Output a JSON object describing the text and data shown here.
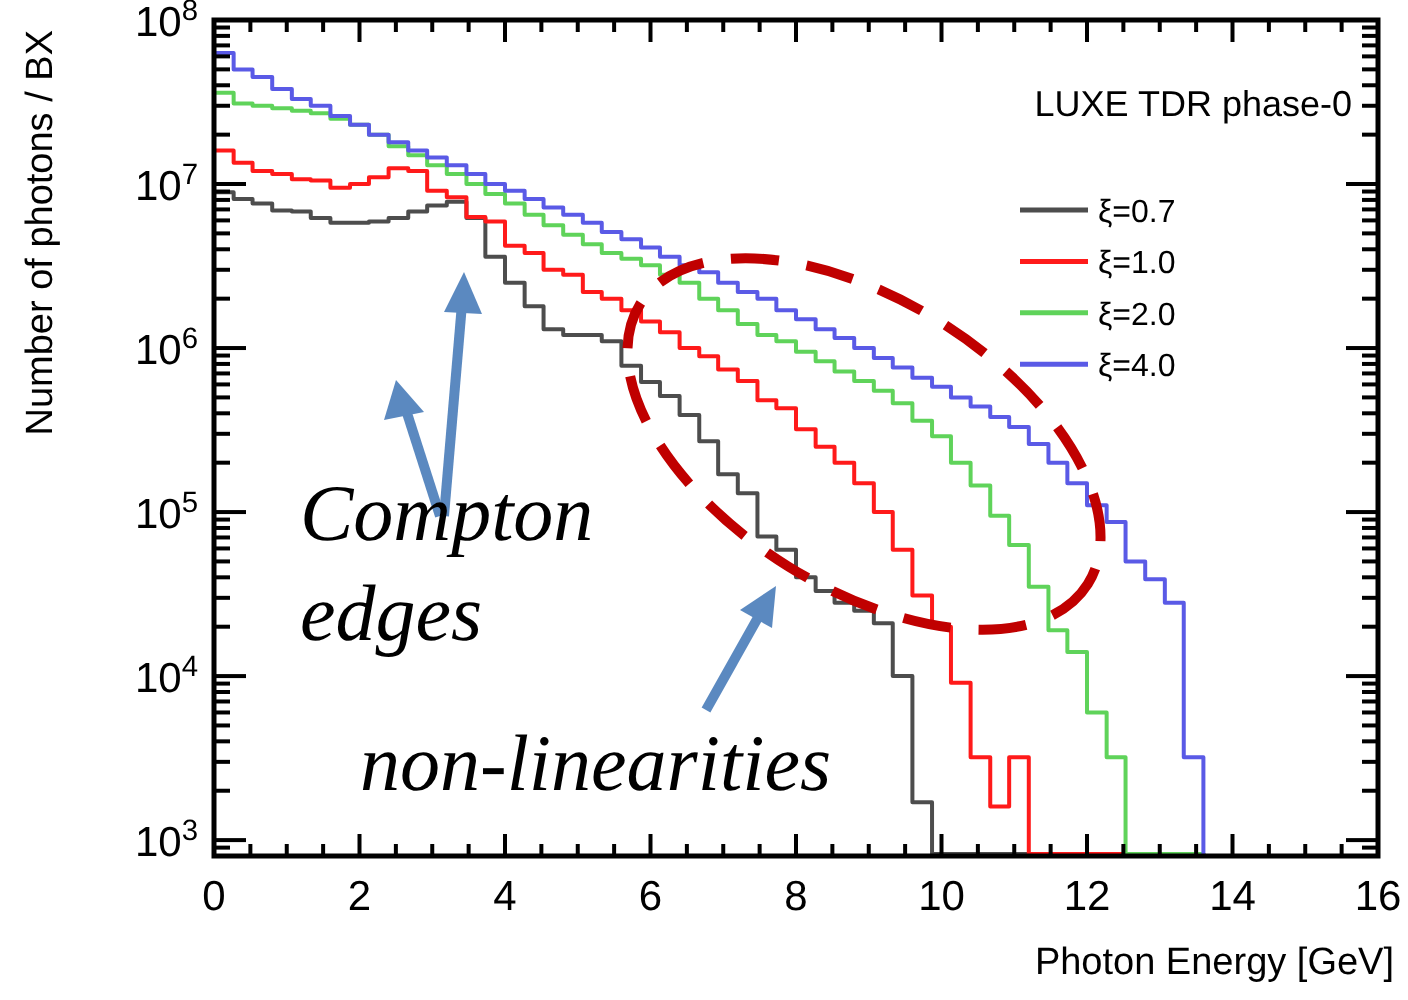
{
  "chart_data": {
    "type": "histogram",
    "xlabel": "Photon Energy [GeV]",
    "ylabel": "Number of photons / BX",
    "legend_title": "LUXE TDR phase-0",
    "legend": "top right",
    "log": true,
    "series": [
      {
        "name": "ξ=0.7",
        "color": "#4d4d4d",
        "values": [
          8900000.0,
          8100000.0,
          7600000.0,
          6900000.0,
          6800000.0,
          6200000.0,
          5800000.0,
          5800000.0,
          5900000.0,
          6200000.0,
          6800000.0,
          7400000.0,
          7800000.0,
          6200000.0,
          3600000.0,
          2500000.0,
          1800000.0,
          1300000.0,
          1200000.0,
          1200000.0,
          1100000.0,
          780000.0,
          620000.0,
          510000.0,
          390000.0,
          270000.0,
          170000.0,
          130000.0,
          71000.0,
          59000.0,
          40000.0,
          33000.0,
          28000.0,
          25000.0,
          21000.0,
          10000.0,
          1700.0,
          null,
          null,
          null,
          null,
          null,
          null,
          null,
          null,
          null,
          null,
          null,
          null,
          null,
          null
        ]
      },
      {
        "name": "ξ=1.0",
        "color": "#ff1a1a",
        "values": [
          16000000.0,
          13500000.0,
          12000000.0,
          11500000.0,
          10700000.0,
          10500000.0,
          9500000.0,
          10000000.0,
          11000000.0,
          12500000.0,
          12000000.0,
          9100000.0,
          8300000.0,
          6300000.0,
          5900000.0,
          4200000.0,
          3800000.0,
          3000000.0,
          2800000.0,
          2200000.0,
          2000000.0,
          1700000.0,
          1450000.0,
          1250000.0,
          1000000.0,
          890000.0,
          740000.0,
          630000.0,
          480000.0,
          430000.0,
          320000.0,
          250000.0,
          200000.0,
          150000.0,
          100000.0,
          59000.0,
          31000.0,
          20000.0,
          9100.0,
          3200.0,
          1600.0,
          3200.0,
          null,
          null,
          null,
          null,
          null,
          null,
          null,
          null,
          null
        ]
      },
      {
        "name": "ξ=2.0",
        "color": "#5fd35a",
        "values": [
          36000000.0,
          31000000.0,
          30000000.0,
          29000000.0,
          28000000.0,
          27000000.0,
          25000000.0,
          23000000.0,
          20000000.0,
          17000000.0,
          15000000.0,
          13000000.0,
          11500000.0,
          10000000.0,
          8700000.0,
          7600000.0,
          6500000.0,
          5600000.0,
          4900000.0,
          4300000.0,
          3800000.0,
          3500000.0,
          3200000.0,
          2800000.0,
          2500000.0,
          2000000.0,
          1700000.0,
          1400000.0,
          1200000.0,
          1100000.0,
          950000.0,
          830000.0,
          720000.0,
          630000.0,
          550000.0,
          460000.0,
          360000.0,
          290000.0,
          200000.0,
          145000.0,
          95000.0,
          63000.0,
          35000.0,
          19000.0,
          14000.0,
          6000.0,
          3200.0,
          null,
          null,
          null,
          null
        ]
      },
      {
        "name": "ξ=4.0",
        "color": "#5a5ae6",
        "values": [
          63000000.0,
          50000000.0,
          45000000.0,
          38000000.0,
          33000000.0,
          30000000.0,
          26000000.0,
          23000000.0,
          20000000.0,
          18000000.0,
          16000000.0,
          14500000.0,
          13000000.0,
          11500000.0,
          10000000.0,
          9100000.0,
          8100000.0,
          7200000.0,
          6500000.0,
          5800000.0,
          5100000.0,
          4600000.0,
          4100000.0,
          3600000.0,
          3200000.0,
          2900000.0,
          2500000.0,
          2200000.0,
          2000000.0,
          1700000.0,
          1500000.0,
          1300000.0,
          1150000.0,
          1000000.0,
          870000.0,
          760000.0,
          660000.0,
          580000.0,
          500000.0,
          440000.0,
          380000.0,
          330000.0,
          260000.0,
          200000.0,
          150000.0,
          110000.0,
          87000.0,
          50000.0,
          39000.0,
          28000.0,
          3200.0
        ]
      }
    ],
    "bins": [
      0,
      0.27,
      0.53,
      0.8,
      1.07,
      1.33,
      1.6,
      1.87,
      2.13,
      2.4,
      2.67,
      2.93,
      3.2,
      3.47,
      3.73,
      4,
      4.27,
      4.53,
      4.8,
      5.07,
      5.33,
      5.6,
      5.87,
      6.13,
      6.4,
      6.67,
      6.93,
      7.2,
      7.47,
      7.73,
      8,
      8.27,
      8.53,
      8.8,
      9.07,
      9.33,
      9.6,
      9.87,
      10.13,
      10.4,
      10.67,
      10.93,
      11.2,
      11.47,
      11.73,
      12,
      12.27,
      12.53,
      12.8,
      13.07,
      13.33,
      13.6
    ],
    "xlim": [
      0,
      16
    ],
    "xticks": [
      0,
      {
        "value": 0.5,
        "label": null
      },
      {
        "value": 1,
        "label": null
      },
      {
        "value": 1.5,
        "label": null
      },
      2,
      {
        "value": 2.5,
        "label": null
      },
      {
        "value": 3,
        "label": null
      },
      {
        "value": 3.5,
        "label": null
      },
      4,
      {
        "value": 4.5,
        "label": null
      },
      {
        "value": 5,
        "label": null
      },
      {
        "value": 5.5,
        "label": null
      },
      6,
      {
        "value": 6.5,
        "label": null
      },
      {
        "value": 7,
        "label": null
      },
      {
        "value": 7.5,
        "label": null
      },
      8,
      {
        "value": 8.5,
        "label": null
      },
      {
        "value": 9,
        "label": null
      },
      {
        "value": 9.5,
        "label": null
      },
      10,
      {
        "value": 10.5,
        "label": null
      },
      {
        "value": 11,
        "label": null
      },
      {
        "value": 11.5,
        "label": null
      },
      12,
      {
        "value": 12.5,
        "label": null
      },
      {
        "value": 13,
        "label": null
      },
      {
        "value": 13.5,
        "label": null
      },
      14,
      {
        "value": 14.5,
        "label": null
      },
      {
        "value": 15,
        "label": null
      },
      {
        "value": 15.5,
        "label": null
      },
      16
    ],
    "ylim": [
      800,
      100000000.0
    ],
    "yticks": [
      {
        "value": 900,
        "label": null
      },
      {
        "value": 1000,
        "label": "10$^{3}$"
      },
      {
        "value": 2000,
        "label": null
      },
      {
        "value": 3000,
        "label": null
      },
      {
        "value": 4000,
        "label": null
      },
      {
        "value": 5000,
        "label": null
      },
      {
        "value": 6000,
        "label": null
      },
      {
        "value": 7000,
        "label": null
      },
      {
        "value": 8000,
        "label": null
      },
      {
        "value": 9000,
        "label": null
      },
      {
        "value": 10000,
        "label": "10$^{4}$"
      },
      {
        "value": 20000,
        "label": null
      },
      {
        "value": 30000,
        "label": null
      },
      {
        "value": 40000,
        "label": null
      },
      {
        "value": 50000,
        "label": null
      },
      {
        "value": 60000,
        "label": null
      },
      {
        "value": 70000,
        "label": null
      },
      {
        "value": 80000,
        "label": null
      },
      {
        "value": 90000,
        "label": null
      },
      {
        "value": 100000,
        "label": "10$^{5}$"
      },
      {
        "value": 200000,
        "label": null
      },
      {
        "value": 300000,
        "label": null
      },
      {
        "value": 400000,
        "label": null
      },
      {
        "value": 500000,
        "label": null
      },
      {
        "value": 600000,
        "label": null
      },
      {
        "value": 700000,
        "label": null
      },
      {
        "value": 800000,
        "label": null
      },
      {
        "value": 900000,
        "label": null
      },
      {
        "value": 1000000,
        "label": "10$^{6}$"
      },
      {
        "value": 2000000,
        "label": null
      },
      {
        "value": 3000000,
        "label": null
      },
      {
        "value": 4000000,
        "label": null
      },
      {
        "value": 5000000,
        "label": null
      },
      {
        "value": 6000000,
        "label": null
      },
      {
        "value": 7000000,
        "label": null
      },
      {
        "value": 8000000,
        "label": null
      },
      {
        "value": 9000000,
        "label": null
      },
      {
        "value": 10000000,
        "label": "10$^{7}$"
      },
      {
        "value": 20000000,
        "label": null
      },
      {
        "value": 30000000,
        "label": null
      },
      {
        "value": 40000000,
        "label": null
      },
      {
        "value": 50000000,
        "label": null
      },
      {
        "value": 60000000,
        "label": null
      },
      {
        "value": 70000000,
        "label": null
      },
      {
        "value": 80000000,
        "label": null
      },
      {
        "value": 90000000,
        "label": null
      },
      {
        "value": 100000000,
        "label": "10$^{8}$"
      }
    ],
    "annotations": [
      "Compton edges",
      "non-linearities"
    ]
  }
}
